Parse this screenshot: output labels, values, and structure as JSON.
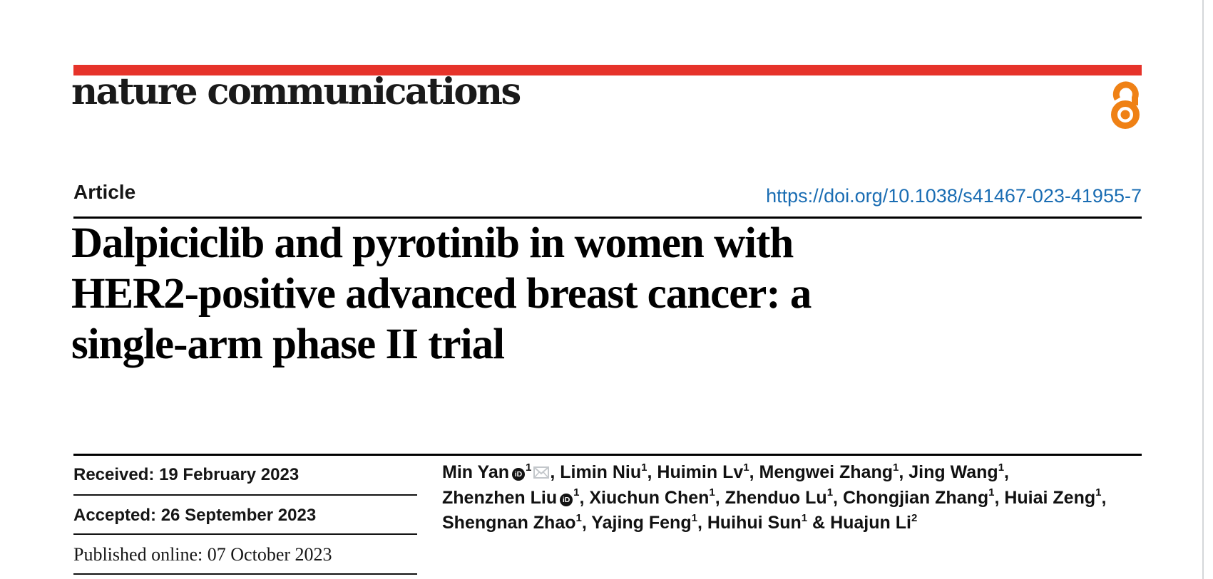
{
  "masthead": {
    "logo": "nature communications"
  },
  "article": {
    "label": "Article",
    "doi": "https://doi.org/10.1038/s41467-023-41955-7",
    "title_lines": [
      "Dalpiciclib and pyrotinib in women with",
      "HER2-positive advanced breast cancer: a",
      "single-arm phase II trial"
    ]
  },
  "dates": [
    {
      "label": "Received:",
      "value": "19 February 2023"
    },
    {
      "label": "Accepted:",
      "value": "26 September 2023"
    },
    {
      "label": "Published online:",
      "value": "07 October 2023"
    }
  ],
  "authors": {
    "orcid_icon_text": "iD",
    "lines": [
      [
        {
          "name": "Min Yan",
          "orcid": true,
          "sup": "1",
          "email": true,
          "trail": ", "
        },
        {
          "name": "Limin Niu",
          "sup": "1",
          "trail": ", "
        },
        {
          "name": "Huimin Lv",
          "sup": "1",
          "trail": ", "
        },
        {
          "name": "Mengwei Zhang",
          "sup": "1",
          "trail": ", "
        },
        {
          "name": "Jing Wang",
          "sup": "1",
          "trail": ","
        }
      ],
      [
        {
          "name": "Zhenzhen Liu",
          "orcid": true,
          "sup": "1",
          "trail": ", "
        },
        {
          "name": "Xiuchun Chen",
          "sup": "1",
          "trail": ", "
        },
        {
          "name": "Zhenduo Lu",
          "sup": "1",
          "trail": ", "
        },
        {
          "name": "Chongjian Zhang",
          "sup": "1",
          "trail": ", "
        },
        {
          "name": "Huiai Zeng",
          "sup": "1",
          "trail": ","
        }
      ],
      [
        {
          "name": "Shengnan Zhao",
          "sup": "1",
          "trail": ", "
        },
        {
          "name": "Yajing Feng",
          "sup": "1",
          "trail": ", "
        },
        {
          "name": "Huihui Sun",
          "sup": "1",
          "trail": " & "
        },
        {
          "name": "Huajun Li",
          "sup": "2",
          "trail": ""
        }
      ]
    ]
  },
  "colors": {
    "accent_red": "#e6332a",
    "open_access_orange": "#ef8115",
    "link_blue": "#1a6db3",
    "text_dark": "#161616"
  }
}
